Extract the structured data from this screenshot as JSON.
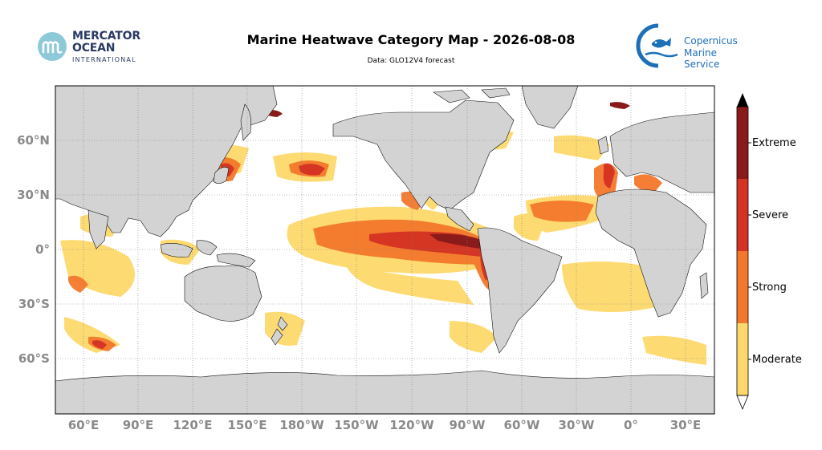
{
  "header": {
    "title": "Marine Heatwave Category Map - 2026-08-08",
    "subtitle": "Data: GLO12V4 forecast"
  },
  "logos": {
    "left": {
      "line1": "MERCATOR",
      "line2": "OCEAN",
      "line3": "INTERNATIONAL",
      "icon": "mercator-m-icon"
    },
    "right": {
      "line1": "Copernicus",
      "line2": "Marine Service",
      "icon": "fish-icon"
    }
  },
  "map": {
    "projection": "equirectangular",
    "lon_range": [
      40,
      410
    ],
    "lat_range": [
      -90,
      90
    ],
    "ocean_color": "#ffffff",
    "land_color": "#d3d3d3",
    "y_ticks": [
      "60°N",
      "30°N",
      "0°",
      "30°S",
      "60°S"
    ],
    "x_ticks": [
      "60°E",
      "90°E",
      "120°E",
      "150°E",
      "180°W",
      "150°W",
      "120°W",
      "90°W",
      "60°W",
      "30°W",
      "0°",
      "30°E"
    ],
    "gridlines": true
  },
  "colorbar": {
    "categories": [
      "Moderate",
      "Strong",
      "Severe",
      "Extreme"
    ],
    "colors": [
      "#fdd96b",
      "#f4782c",
      "#d43223",
      "#8b1a1a"
    ],
    "extend_top_color": "#000000",
    "extend_bottom_color": "#ffffff"
  }
}
